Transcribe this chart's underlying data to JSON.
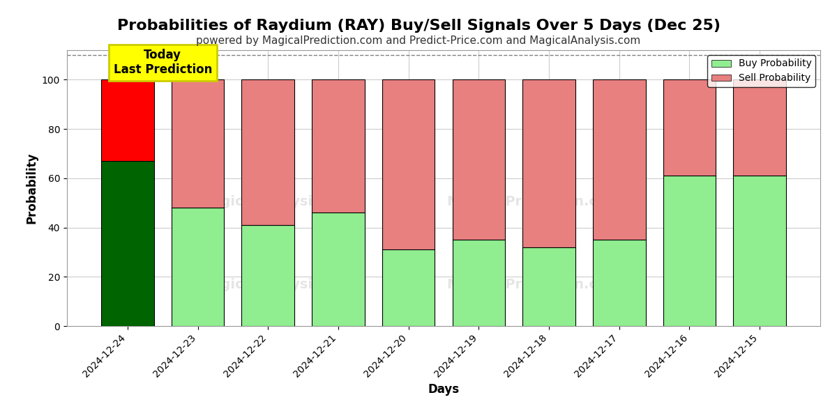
{
  "title": "Probabilities of Raydium (RAY) Buy/Sell Signals Over 5 Days (Dec 25)",
  "subtitle": "powered by MagicalPrediction.com and Predict-Price.com and MagicalAnalysis.com",
  "xlabel": "Days",
  "ylabel": "Probability",
  "categories": [
    "2024-12-24",
    "2024-12-23",
    "2024-12-22",
    "2024-12-21",
    "2024-12-20",
    "2024-12-19",
    "2024-12-18",
    "2024-12-17",
    "2024-12-16",
    "2024-12-15"
  ],
  "buy_values": [
    67,
    48,
    41,
    46,
    31,
    35,
    32,
    35,
    61,
    61
  ],
  "sell_values": [
    33,
    52,
    59,
    54,
    69,
    65,
    68,
    65,
    39,
    39
  ],
  "buy_colors": [
    "#006400",
    "#90EE90",
    "#90EE90",
    "#90EE90",
    "#90EE90",
    "#90EE90",
    "#90EE90",
    "#90EE90",
    "#90EE90",
    "#90EE90"
  ],
  "sell_colors": [
    "#FF0000",
    "#E88080",
    "#E88080",
    "#E88080",
    "#E88080",
    "#E88080",
    "#E88080",
    "#E88080",
    "#E88080",
    "#E88080"
  ],
  "legend_buy_color": "#90EE90",
  "legend_sell_color": "#E88080",
  "today_annotation_text": "Today\nLast Prediction",
  "today_annotation_bg": "#FFFF00",
  "ylim": [
    0,
    112
  ],
  "yticks": [
    0,
    20,
    40,
    60,
    80,
    100
  ],
  "dashed_line_y": 110,
  "background_color": "#ffffff",
  "grid_color": "#cccccc",
  "title_fontsize": 16,
  "subtitle_fontsize": 11,
  "axis_label_fontsize": 12,
  "tick_fontsize": 10,
  "bar_width": 0.75,
  "edgecolor": "#000000",
  "edgelinewidth": 0.8
}
